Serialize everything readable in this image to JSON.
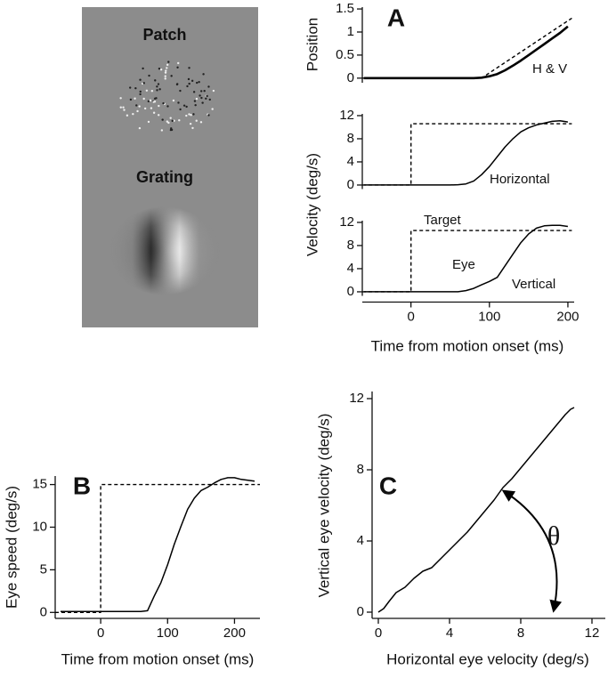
{
  "stimuli": {
    "patch_label": "Patch",
    "grating_label": "Grating"
  },
  "chart_data": [
    {
      "type": "line",
      "panel_label": "A",
      "ylabel": "Position",
      "annotations": [
        "H & V"
      ],
      "x": [
        -60,
        -50,
        -40,
        -30,
        -20,
        -10,
        0,
        10,
        20,
        30,
        40,
        50,
        60,
        70,
        80,
        90,
        100,
        110,
        120,
        130,
        140,
        150,
        160,
        170,
        180,
        190,
        200
      ],
      "xlim": [
        -62,
        208
      ],
      "ylim": [
        -0.1,
        1.54
      ],
      "yticks": [
        0,
        0.5,
        1,
        1.5
      ],
      "series": [
        {
          "color": "#000000",
          "linewidth": 2.6,
          "dashed": false,
          "values": [
            0,
            0,
            0,
            0,
            0,
            0,
            0,
            0,
            0,
            0,
            0,
            0,
            0,
            0,
            0,
            0.01,
            0.04,
            0.09,
            0.17,
            0.27,
            0.38,
            0.5,
            0.62,
            0.74,
            0.86,
            0.98,
            1.12
          ]
        },
        {
          "color": "#000000",
          "linewidth": 1.4,
          "dashed": true,
          "x": [
            -62,
            90,
            205
          ],
          "values": [
            0,
            0,
            1.3
          ]
        }
      ]
    },
    {
      "type": "line",
      "ylabel": "Velocity (deg/s)",
      "annotations": [
        "Horizontal"
      ],
      "x": [
        -60,
        -50,
        -40,
        -30,
        -20,
        -10,
        0,
        10,
        20,
        30,
        40,
        50,
        60,
        70,
        80,
        90,
        100,
        110,
        120,
        130,
        140,
        150,
        160,
        170,
        180,
        190,
        200
      ],
      "xlim": [
        -62,
        208
      ],
      "ylim": [
        -0.7,
        12.3
      ],
      "yticks": [
        0,
        4,
        8,
        12
      ],
      "series": [
        {
          "color": "#000000",
          "linewidth": 1.5,
          "dashed": false,
          "values": [
            0,
            0,
            0,
            0,
            0,
            0,
            0,
            0,
            0,
            0,
            0,
            0,
            0.05,
            0.2,
            0.7,
            1.8,
            3.2,
            4.9,
            6.6,
            8.0,
            9.2,
            9.9,
            10.4,
            10.7,
            11.0,
            11.1,
            10.9
          ]
        },
        {
          "color": "#000000",
          "linewidth": 1.4,
          "dashed": true,
          "x": [
            -62,
            0,
            0,
            205
          ],
          "values": [
            0,
            0,
            10.6,
            10.6
          ]
        }
      ]
    },
    {
      "type": "line",
      "annotations": [
        "Target",
        "Eye",
        "Vertical"
      ],
      "xlabel": "Time from motion onset (ms)",
      "x": [
        -60,
        -50,
        -40,
        -30,
        -20,
        -10,
        0,
        10,
        20,
        30,
        40,
        50,
        60,
        70,
        80,
        90,
        100,
        110,
        120,
        130,
        140,
        150,
        160,
        170,
        180,
        190,
        200
      ],
      "xlim": [
        -62,
        208
      ],
      "ylim": [
        -0.7,
        12.3
      ],
      "yticks": [
        0,
        4,
        8,
        12
      ],
      "xticks": [
        0,
        100,
        200
      ],
      "series": [
        {
          "color": "#000000",
          "linewidth": 1.5,
          "dashed": false,
          "values": [
            0,
            0,
            0,
            0,
            0,
            0,
            0,
            0,
            0,
            0,
            0,
            0,
            0,
            0.2,
            0.6,
            1.2,
            1.8,
            2.5,
            4.5,
            6.5,
            8.5,
            10,
            11,
            11.4,
            11.5,
            11.5,
            11.3
          ]
        },
        {
          "color": "#000000",
          "linewidth": 1.4,
          "dashed": true,
          "x": [
            -62,
            0,
            0,
            205
          ],
          "values": [
            0,
            0,
            10.6,
            10.6
          ]
        }
      ]
    },
    {
      "type": "line",
      "panel_label": "B",
      "ylabel": "Eye speed (deg/s)",
      "xlabel": "Time from motion onset (ms)",
      "x": [
        -60,
        -50,
        -40,
        -30,
        -20,
        -10,
        0,
        10,
        20,
        30,
        40,
        50,
        60,
        70,
        80,
        90,
        100,
        110,
        120,
        130,
        140,
        150,
        160,
        170,
        180,
        190,
        200,
        210,
        220,
        230
      ],
      "xlim": [
        -68,
        238
      ],
      "ylim": [
        -0.7,
        16
      ],
      "yticks": [
        0,
        5,
        10,
        15
      ],
      "xticks": [
        0,
        100,
        200
      ],
      "series": [
        {
          "color": "#000000",
          "linewidth": 1.5,
          "dashed": false,
          "values": [
            0.1,
            0.1,
            0.1,
            0.1,
            0.1,
            0.1,
            0.1,
            0.1,
            0.1,
            0.1,
            0.1,
            0.1,
            0.1,
            0.2,
            1.9,
            3.5,
            5.6,
            8,
            10.1,
            12.1,
            13.4,
            14.3,
            14.7,
            15.2,
            15.6,
            15.8,
            15.8,
            15.6,
            15.5,
            15.4
          ]
        },
        {
          "color": "#000000",
          "linewidth": 1.4,
          "dashed": true,
          "x": [
            -68,
            0,
            0,
            238
          ],
          "values": [
            0,
            0,
            15,
            15
          ]
        }
      ]
    },
    {
      "type": "line",
      "panel_label": "C",
      "ylabel": "Vertical eye velocity (deg/s)",
      "xlabel": "Horizontal eye velocity (deg/s)",
      "annotations": [
        "θ"
      ],
      "x": [
        0,
        0.3,
        0.6,
        1,
        1.5,
        2,
        2.5,
        3,
        3.5,
        4,
        4.5,
        5,
        5.5,
        6,
        6.5,
        7,
        7.5,
        8,
        8.5,
        9,
        9.5,
        10,
        10.5,
        10.8,
        11
      ],
      "xlim": [
        -0.35,
        12.75
      ],
      "ylim": [
        -0.35,
        12.4
      ],
      "xticks": [
        0,
        4,
        8,
        12
      ],
      "yticks": [
        0,
        4,
        8,
        12
      ],
      "series": [
        {
          "color": "#000000",
          "linewidth": 1.5,
          "dashed": false,
          "values": [
            0,
            0.2,
            0.6,
            1.1,
            1.4,
            1.9,
            2.3,
            2.5,
            3.0,
            3.5,
            4.0,
            4.5,
            5.1,
            5.7,
            6.3,
            7.0,
            7.5,
            8.1,
            8.7,
            9.3,
            9.9,
            10.5,
            11.1,
            11.4,
            11.5
          ]
        }
      ]
    }
  ]
}
